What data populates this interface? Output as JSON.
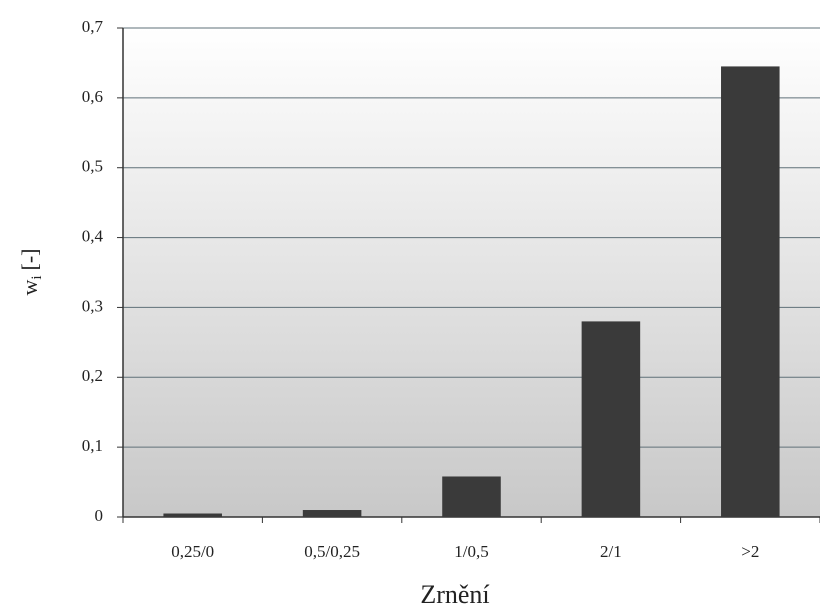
{
  "chart_data": {
    "type": "bar",
    "categories": [
      "0,25/0",
      "0,5/0,25",
      "1/0,5",
      "2/1",
      ">2"
    ],
    "values": [
      0.005,
      0.01,
      0.058,
      0.28,
      0.645
    ],
    "color": "#3a3a3a",
    "xlabel": "Zrnění",
    "ylabel": {
      "main": "w",
      "sub": "i",
      "unit": "[-]"
    },
    "ylim": [
      0,
      0.7
    ],
    "yticks": [
      0,
      {
        "value": 0.1,
        "label": "0,1"
      },
      {
        "value": 0.2,
        "label": "0,2"
      },
      {
        "value": 0.3,
        "label": "0,3"
      },
      {
        "value": 0.4,
        "label": "0,4"
      },
      {
        "value": 0.5,
        "label": "0,5"
      },
      {
        "value": 0.6,
        "label": "0,6"
      },
      {
        "value": 0.7,
        "label": "0,7"
      }
    ],
    "grid": true
  }
}
